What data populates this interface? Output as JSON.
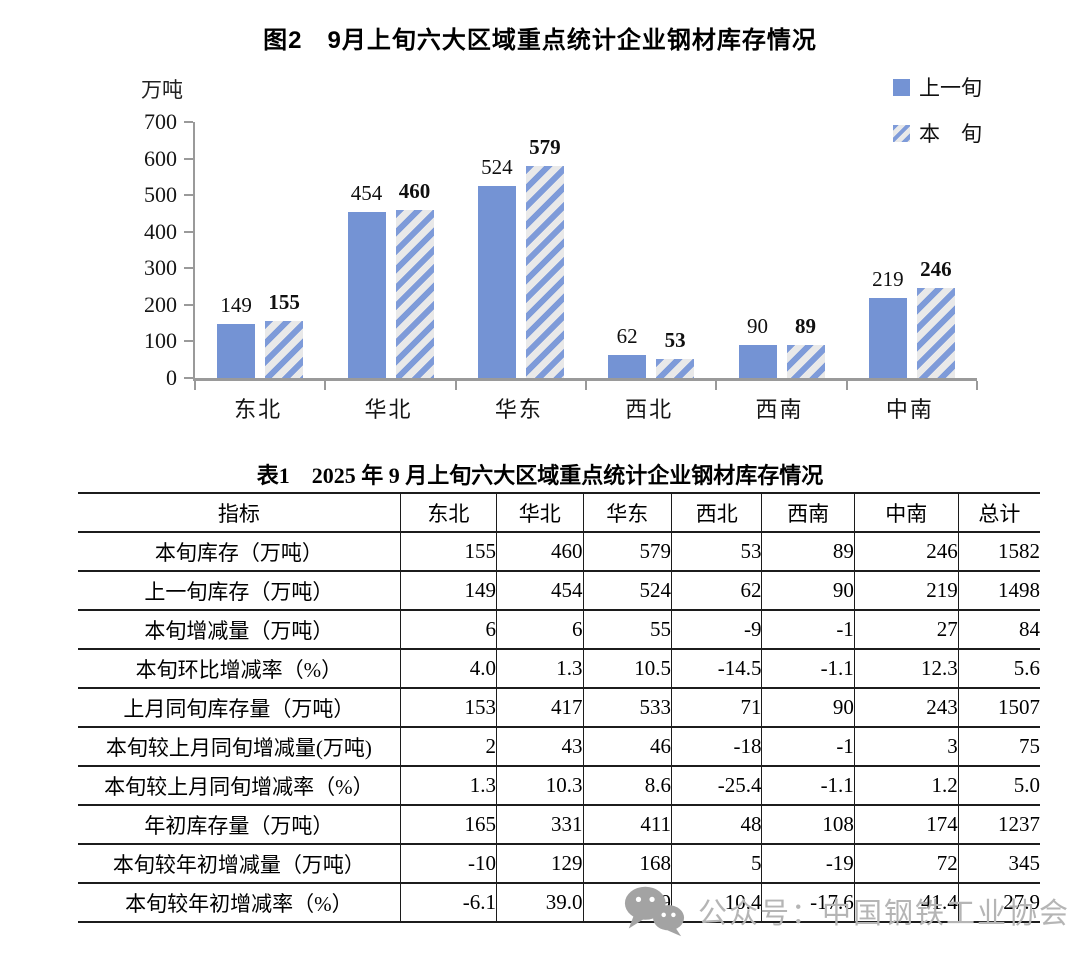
{
  "figure": {
    "title": "图2　9月上旬六大区域重点统计企业钢材库存情况",
    "unit_label": "万吨",
    "legend": [
      {
        "label": "上一旬",
        "swatch": "solid"
      },
      {
        "label": "本　旬",
        "swatch": "hatch"
      }
    ]
  },
  "chart_data": {
    "type": "bar",
    "title": "图2　9月上旬六大区域重点统计企业钢材库存情况",
    "categories": [
      "东北",
      "华北",
      "华东",
      "西北",
      "西南",
      "中南"
    ],
    "series": [
      {
        "name": "上一旬",
        "values": [
          149,
          454,
          524,
          62,
          90,
          219
        ]
      },
      {
        "name": "本旬",
        "values": [
          155,
          460,
          579,
          53,
          89,
          246
        ]
      }
    ],
    "xlabel": "",
    "ylabel": "万吨",
    "ylim": [
      0,
      700
    ],
    "yticks": [
      0,
      100,
      200,
      300,
      400,
      500,
      600,
      700
    ],
    "grid": false,
    "legend_position": "top-right",
    "bar_value_labels": true
  },
  "table": {
    "title": "表1　2025 年 9 月上旬六大区域重点统计企业钢材库存情况",
    "headers": [
      "指标",
      "东北",
      "华北",
      "华东",
      "西北",
      "西南",
      "中南",
      "总计"
    ],
    "rows": [
      {
        "label": "本旬库存（万吨）",
        "values": [
          "155",
          "460",
          "579",
          "53",
          "89",
          "246",
          "1582"
        ]
      },
      {
        "label": "上一旬库存（万吨）",
        "values": [
          "149",
          "454",
          "524",
          "62",
          "90",
          "219",
          "1498"
        ]
      },
      {
        "label": "本旬增减量（万吨）",
        "values": [
          "6",
          "6",
          "55",
          "-9",
          "-1",
          "27",
          "84"
        ]
      },
      {
        "label": "本旬环比增减率（%）",
        "values": [
          "4.0",
          "1.3",
          "10.5",
          "-14.5",
          "-1.1",
          "12.3",
          "5.6"
        ]
      },
      {
        "label": "上月同旬库存量（万吨）",
        "values": [
          "153",
          "417",
          "533",
          "71",
          "90",
          "243",
          "1507"
        ]
      },
      {
        "label": "本旬较上月同旬增减量(万吨)",
        "values": [
          "2",
          "43",
          "46",
          "-18",
          "-1",
          "3",
          "75"
        ]
      },
      {
        "label": "本旬较上月同旬增减率（%）",
        "values": [
          "1.3",
          "10.3",
          "8.6",
          "-25.4",
          "-1.1",
          "1.2",
          "5.0"
        ]
      },
      {
        "label": "年初库存量（万吨）",
        "values": [
          "165",
          "331",
          "411",
          "48",
          "108",
          "174",
          "1237"
        ]
      },
      {
        "label": "本旬较年初增减量（万吨）",
        "values": [
          "-10",
          "129",
          "168",
          "5",
          "-19",
          "72",
          "345"
        ]
      },
      {
        "label": "本旬较年初增减率（%）",
        "values": [
          "-6.1",
          "39.0",
          "40.9",
          "10.4",
          "-17.6",
          "41.4",
          "27.9"
        ]
      }
    ]
  },
  "watermark": {
    "icon": "wechat-icon",
    "text": "公众号：中国钢铁工业协会"
  },
  "colors": {
    "bar_blue": "#7493d4",
    "hatch_blue": "#7e9bd9",
    "hatch_bg": "#e9e9e9",
    "axis_gray": "#9a9a9a",
    "table_border": "#1c1c1c",
    "watermark_gray": "#b5b5b5",
    "watermark_icon_gray": "#a3a3a3"
  }
}
